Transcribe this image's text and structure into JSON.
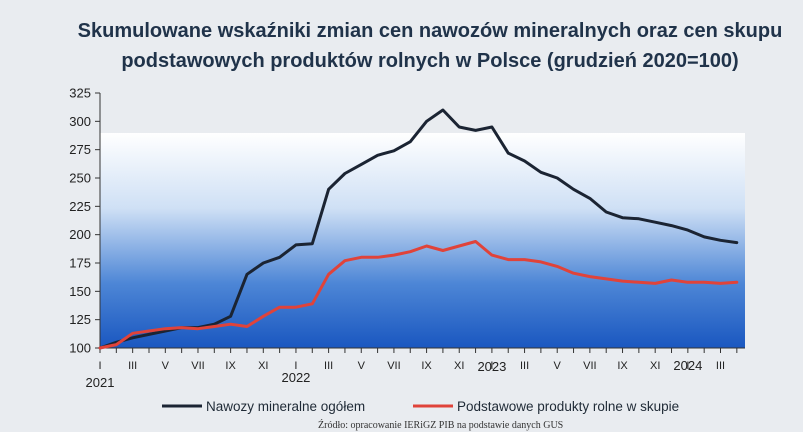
{
  "chart_title_line1": "Skumulowane wskaźniki zmian cen nawozów mineralnych oraz cen skupu",
  "chart_title_line2": "podstawowych produktów rolnych w Polsce (grudzień 2020=100)",
  "source_text": "Źródło: opracowanie IERiGZ PIB na podstawie danych GUS",
  "chart_data": {
    "type": "line",
    "x": [
      "I 2021",
      "II 2021",
      "III 2021",
      "IV 2021",
      "V 2021",
      "VI 2021",
      "VII 2021",
      "VIII 2021",
      "IX 2021",
      "X 2021",
      "XI 2021",
      "XII 2021",
      "I 2022",
      "II 2022",
      "III 2022",
      "IV 2022",
      "V 2022",
      "VI 2022",
      "VII 2022",
      "VIII 2022",
      "IX 2022",
      "X 2022",
      "XI 2022",
      "XII 2022",
      "I 2023",
      "II 2023",
      "III 2023",
      "IV 2023",
      "V 2023",
      "VI 2023",
      "VII 2023",
      "VIII 2023",
      "IX 2023",
      "X 2023",
      "XI 2023",
      "XII 2023",
      "I 2024",
      "II 2024",
      "III 2024",
      "IV 2024"
    ],
    "series": [
      {
        "name": "Nawozy mineralne ogółem",
        "color": "#1b2433",
        "values": [
          100,
          105,
          109,
          112,
          115,
          118,
          118,
          121,
          128,
          165,
          175,
          180,
          191,
          192,
          240,
          254,
          262,
          270,
          274,
          282,
          300,
          310,
          295,
          292,
          295,
          272,
          265,
          255,
          250,
          240,
          232,
          220,
          215,
          214,
          211,
          208,
          204,
          198,
          195,
          193
        ]
      },
      {
        "name": "Podstawowe produkty rolne w skupie",
        "color": "#e0433a",
        "values": [
          100,
          103,
          113,
          115,
          117,
          118,
          117,
          119,
          121,
          119,
          128,
          136,
          136,
          139,
          165,
          177,
          180,
          180,
          182,
          185,
          190,
          186,
          190,
          194,
          182,
          178,
          178,
          176,
          172,
          166,
          163,
          161,
          159,
          158,
          157,
          160,
          158,
          158,
          157,
          158
        ]
      }
    ],
    "ylim": [
      100,
      325
    ],
    "yticks": [
      "100",
      "125",
      "150",
      "175",
      "200",
      "225",
      "250",
      "275",
      "300",
      "325"
    ],
    "xtick_labels": [
      "I",
      "III",
      "V",
      "VII",
      "IX",
      "XI",
      "I",
      "III",
      "V",
      "VII",
      "IX",
      "XI",
      "I",
      "III",
      "V",
      "VII",
      "IX",
      "XI",
      "I",
      "III"
    ],
    "year_labels": [
      "2021",
      "2022",
      "2023",
      "2024"
    ],
    "background_gradient": [
      "#ffffff",
      "#1a57c0"
    ],
    "legend_position": "bottom",
    "grid": false
  }
}
